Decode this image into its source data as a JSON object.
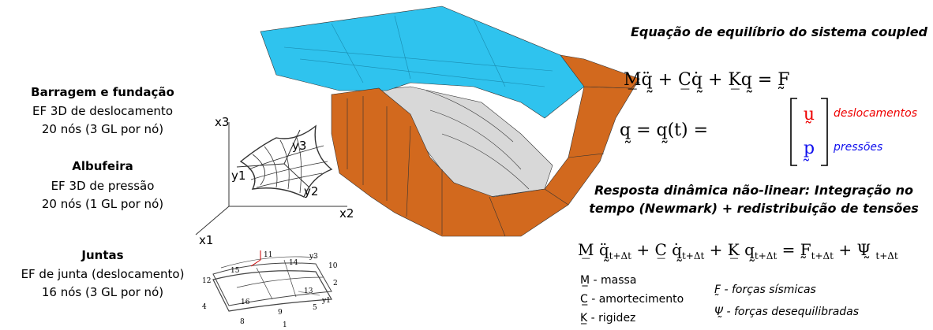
{
  "left": {
    "dam": {
      "title": "Barragem e fundação",
      "lines": [
        "EF 3D de deslocamento",
        "20 nós (3 GL por nó)"
      ]
    },
    "reservoir": {
      "title": "Albufeira",
      "lines": [
        "EF 3D de pressão",
        "20 nós (1 GL por nó)"
      ]
    },
    "joints": {
      "title": "Juntas",
      "lines": [
        "EF de junta (deslocamento)",
        "16 nós (3 GL por nó)"
      ]
    }
  },
  "element_diagram": {
    "axes": [
      "x3",
      "x2",
      "x1"
    ],
    "local_axes": [
      "y3",
      "y1",
      "y2"
    ]
  },
  "joint_diagram": {
    "nodes": [
      "11",
      "14",
      "10",
      "15",
      "12",
      "2",
      "13",
      "4",
      "16",
      "5",
      "9",
      "8",
      "1"
    ],
    "local_axes": [
      "y3",
      "y1"
    ]
  },
  "right": {
    "title": "Equação de equilíbrio do sistema coupled",
    "equation_1": "M̲q̰̈ + C̲q̰̇ + K̲q̰ = F̰",
    "equation_q": "q̰ = q̰(t) =",
    "vector": [
      "ṵ",
      "p̰"
    ],
    "vector_labels": [
      "deslocamentos",
      "pressões"
    ],
    "subtitle": [
      "Resposta dinâmica não-linear: Integração no",
      "tempo (Newmark) + redistribuição de tensões"
    ],
    "equation_2": [
      "M̲ q̰̈",
      "t+Δt",
      " + C̲ q̰̇",
      "t+Δt",
      " + K̲ q̰",
      "t+Δt",
      " = F̰",
      "t+Δt",
      " + Ψ̰ ",
      "t+Δt"
    ],
    "legend_left": [
      "M̲ - massa",
      "C̲ - amortecimento",
      "K̲ - rigidez"
    ],
    "legend_right": [
      "F̰ - forças sísmicas",
      "Ψ̰ -  forças desequilibradas"
    ]
  }
}
